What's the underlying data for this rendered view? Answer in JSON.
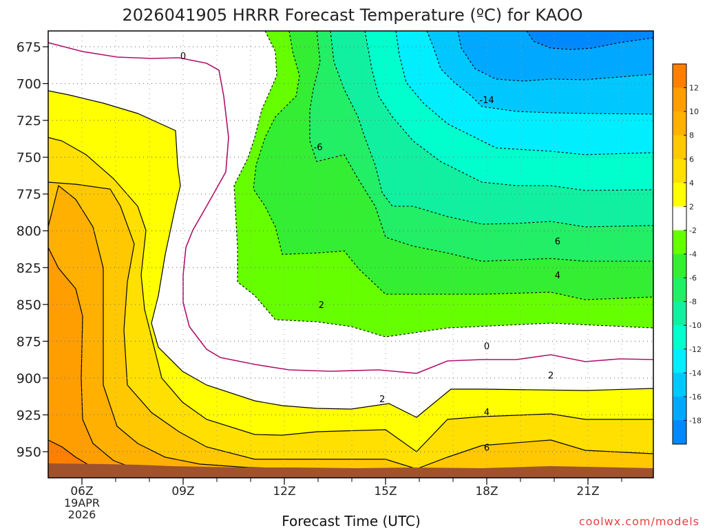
{
  "chart_data": {
    "type": "heatmap",
    "subtype": "filled-contour",
    "title": "2026041905 HRRR Forecast Temperature (ºC) for KAOO",
    "xlabel": "Forecast Time (UTC)",
    "ylabel": "",
    "credit": "coolwx.com/models",
    "x_ticks": [
      {
        "hour": 6,
        "label": "06Z",
        "sub1": "19APR",
        "sub2": "2026"
      },
      {
        "hour": 9,
        "label": "09Z",
        "sub1": "",
        "sub2": ""
      },
      {
        "hour": 12,
        "label": "12Z",
        "sub1": "",
        "sub2": ""
      },
      {
        "hour": 15,
        "label": "15Z",
        "sub1": "",
        "sub2": ""
      },
      {
        "hour": 18,
        "label": "18Z",
        "sub1": "",
        "sub2": ""
      },
      {
        "hour": 21,
        "label": "21Z",
        "sub1": "",
        "sub2": ""
      }
    ],
    "xlim": [
      5,
      23
    ],
    "y_ticks": [
      675,
      700,
      725,
      750,
      775,
      800,
      825,
      850,
      875,
      900,
      925,
      950
    ],
    "ylim": [
      662,
      970
    ],
    "y_axis": "pressure (hPa), inverted",
    "grid": true,
    "legend": "right colorbar",
    "colorbar": {
      "bands": [
        {
          "low": 12,
          "high": 14,
          "color": "#ff7f00"
        },
        {
          "low": 10,
          "high": 12,
          "color": "#ff9e00"
        },
        {
          "low": 8,
          "high": 10,
          "color": "#ffb000"
        },
        {
          "low": 6,
          "high": 8,
          "color": "#ffc800"
        },
        {
          "low": 4,
          "high": 6,
          "color": "#ffe000"
        },
        {
          "low": 2,
          "high": 4,
          "color": "#ffff00"
        },
        {
          "low": -2,
          "high": 2,
          "color": "#ffffff"
        },
        {
          "low": -4,
          "high": -2,
          "color": "#66ff00"
        },
        {
          "low": -6,
          "high": -4,
          "color": "#33ee33"
        },
        {
          "low": -8,
          "high": -6,
          "color": "#22ee66"
        },
        {
          "low": -10,
          "high": -8,
          "color": "#11f0a0"
        },
        {
          "low": -12,
          "high": -10,
          "color": "#00ffcc"
        },
        {
          "low": -14,
          "high": -12,
          "color": "#00eeff"
        },
        {
          "low": -16,
          "high": -14,
          "color": "#00c8ff"
        },
        {
          "low": -18,
          "high": -16,
          "color": "#00a8ff"
        },
        {
          "low": -20,
          "high": -18,
          "color": "#0088ff"
        }
      ],
      "labels": [
        "12",
        "10",
        "8",
        "6",
        "4",
        "2",
        "-2",
        "-4",
        "-6",
        "-8",
        "-10",
        "-12",
        "-14",
        "-16",
        "-18"
      ]
    },
    "contour_labels": [
      {
        "text": "0",
        "hour": 9.0,
        "p": 681
      },
      {
        "text": "0",
        "hour": 18.0,
        "p": 878
      },
      {
        "text": "2",
        "hour": 13.1,
        "p": 850
      },
      {
        "text": "2",
        "hour": 14.9,
        "p": 914
      },
      {
        "text": "2",
        "hour": 19.9,
        "p": 898
      },
      {
        "text": "4",
        "hour": 18.0,
        "p": 923
      },
      {
        "text": "4",
        "hour": 20.1,
        "p": 830
      },
      {
        "text": "6",
        "hour": 18.0,
        "p": 947
      },
      {
        "text": "6",
        "hour": 20.1,
        "p": 807
      },
      {
        "text": "-6",
        "hour": 13.0,
        "p": 743
      },
      {
        "text": "-14",
        "hour": 18.0,
        "p": 711
      }
    ],
    "surface_color": "#a0522d"
  }
}
